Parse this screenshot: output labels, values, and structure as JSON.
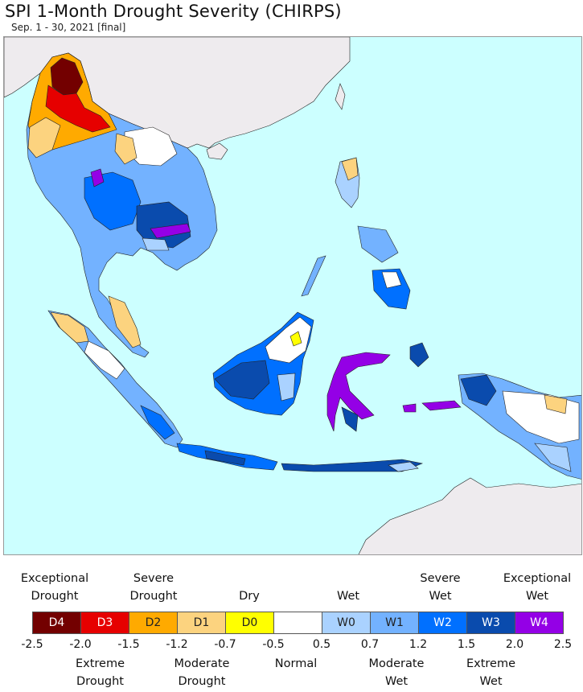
{
  "header": {
    "title": "SPI 1-Month Drought Severity (CHIRPS)",
    "subtitle": "Sep. 1 - 30, 2021 [final]"
  },
  "colors": {
    "ocean": "#ccffff",
    "land_nodata": "#eeebee",
    "normal": "#ffffff",
    "D4": "#730000",
    "D3": "#e60000",
    "D2": "#ffaa00",
    "D1": "#fcd37f",
    "D0": "#ffff00",
    "W0": "#aad2ff",
    "W1": "#73b2ff",
    "W2": "#0070ff",
    "W3": "#0a4bad",
    "W4": "#9400e6"
  },
  "legend": {
    "categories": [
      {
        "code": "D4",
        "label": "D4"
      },
      {
        "code": "D3",
        "label": "D3"
      },
      {
        "code": "D2",
        "label": "D2"
      },
      {
        "code": "D1",
        "label": "D1"
      },
      {
        "code": "D0",
        "label": "D0"
      },
      {
        "code": "normal",
        "label": ""
      },
      {
        "code": "W0",
        "label": "W0"
      },
      {
        "code": "W1",
        "label": "W1"
      },
      {
        "code": "W2",
        "label": "W2"
      },
      {
        "code": "W3",
        "label": "W3"
      },
      {
        "code": "W4",
        "label": "W4"
      }
    ],
    "top_labels": {
      "exceptional_drought": "Exceptional\nDrought",
      "severe_drought": "Severe\nDrought",
      "dry": "Dry",
      "wet": "Wet",
      "severe_wet": "Severe\nWet",
      "exceptional_wet": "Exceptional\nWet"
    },
    "bottom_labels": {
      "extreme_drought": "Extreme\nDrought",
      "moderate_drought": "Moderate\nDrought",
      "normal": "Normal",
      "moderate_wet": "Moderate\nWet",
      "extreme_wet": "Extreme\nWet"
    },
    "ticks": [
      "-2.5",
      "-2.0",
      "-1.5",
      "-1.2",
      "-0.7",
      "-0.5",
      "0.5",
      "0.7",
      "1.2",
      "1.5",
      "2.0",
      "2.5"
    ]
  }
}
